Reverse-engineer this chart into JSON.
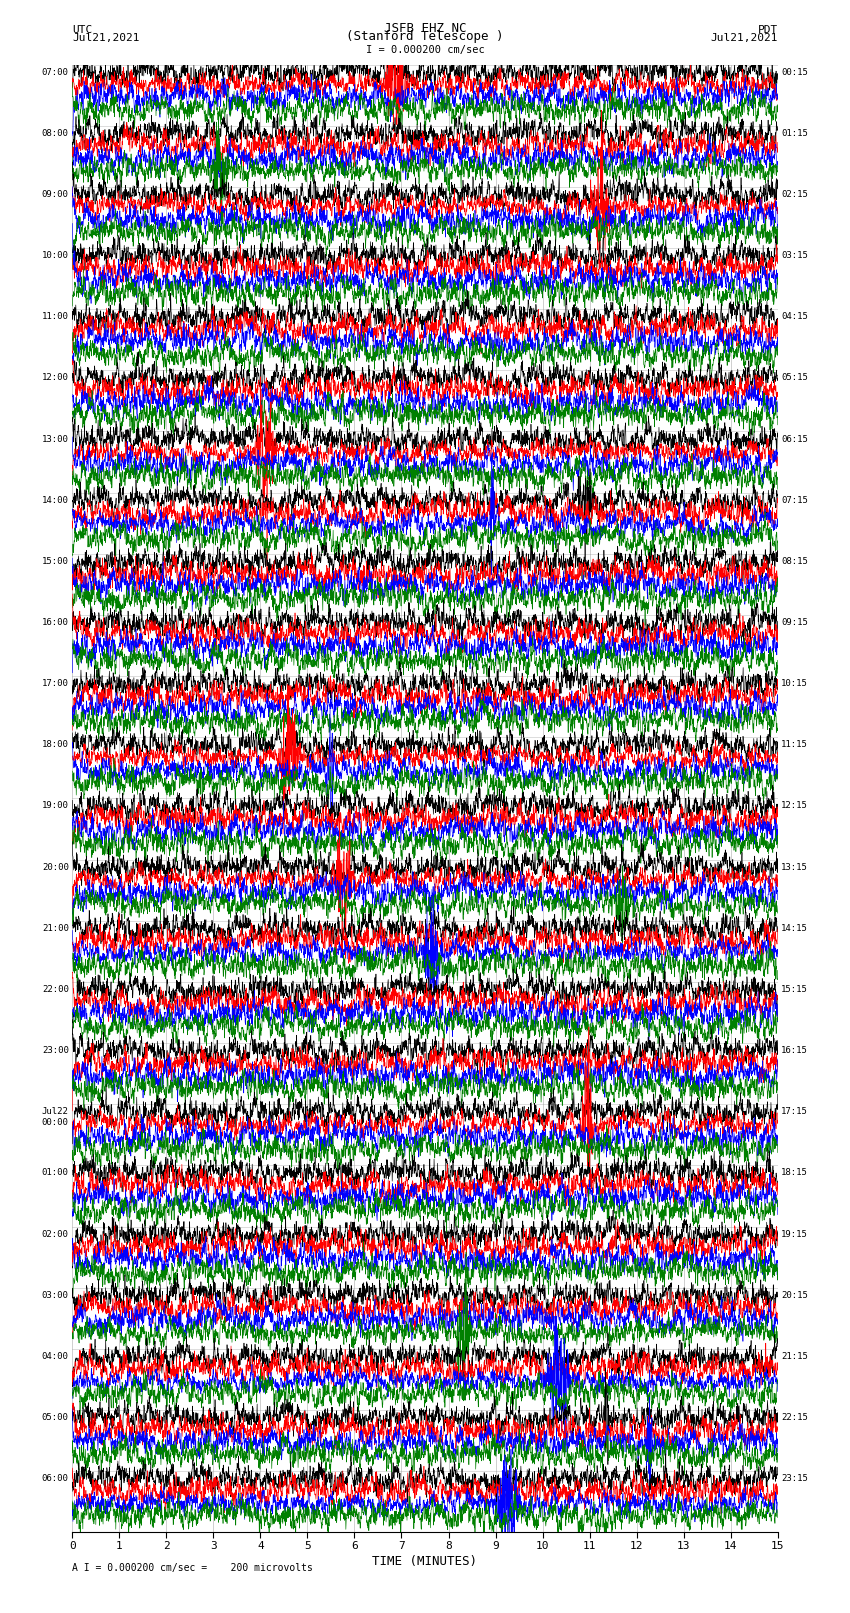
{
  "title_line1": "JSFB EHZ NC",
  "title_line2": "(Stanford Telescope )",
  "scale_label": "I = 0.000200 cm/sec",
  "bottom_label": "A I = 0.000200 cm/sec =    200 microvolts",
  "xlabel": "TIME (MINUTES)",
  "left_header": "UTC",
  "left_date": "Jul21,2021",
  "right_header": "PDT",
  "right_date": "Jul21,2021",
  "fig_width": 8.5,
  "fig_height": 16.13,
  "dpi": 100,
  "background_color": "#ffffff",
  "trace_colors": [
    "#000000",
    "#ff0000",
    "#0000ff",
    "#008000"
  ],
  "num_rows": 24,
  "minutes_per_row": 15,
  "traces_per_row": 4,
  "utc_labels": [
    "07:00",
    "08:00",
    "09:00",
    "10:00",
    "11:00",
    "12:00",
    "13:00",
    "14:00",
    "15:00",
    "16:00",
    "17:00",
    "18:00",
    "19:00",
    "20:00",
    "21:00",
    "22:00",
    "23:00",
    "Jul22\n00:00",
    "01:00",
    "02:00",
    "03:00",
    "04:00",
    "05:00",
    "06:00"
  ],
  "pdt_labels": [
    "00:15",
    "01:15",
    "02:15",
    "03:15",
    "04:15",
    "05:15",
    "06:15",
    "07:15",
    "08:15",
    "09:15",
    "10:15",
    "11:15",
    "12:15",
    "13:15",
    "14:15",
    "15:15",
    "16:15",
    "17:15",
    "18:15",
    "19:15",
    "20:15",
    "21:15",
    "22:15",
    "23:15"
  ],
  "grid_color": "#888888"
}
